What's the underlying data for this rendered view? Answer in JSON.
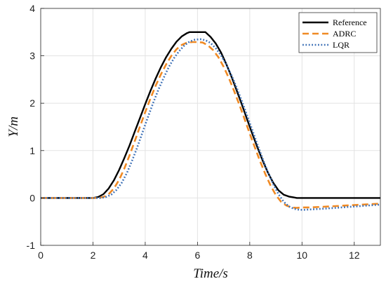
{
  "chart_data": {
    "type": "line",
    "xlabel": "Time/s",
    "ylabel": "Y/m",
    "xlim": [
      0,
      13
    ],
    "ylim": [
      -1,
      4
    ],
    "xticks": [
      "0",
      "2",
      "4",
      "6",
      "8",
      "10",
      "12"
    ],
    "yticks": [
      "-1",
      "0",
      "1",
      "2",
      "3",
      "4"
    ],
    "grid": true,
    "legend_position": "top-right",
    "series": [
      {
        "name": "Reference",
        "color": "#000000",
        "style": "solid",
        "x": [
          0,
          2.0,
          2.2,
          2.4,
          2.6,
          2.8,
          3.0,
          3.2,
          3.4,
          3.6,
          3.8,
          4.0,
          4.2,
          4.4,
          4.6,
          4.8,
          5.0,
          5.2,
          5.4,
          5.6,
          5.7,
          6.0,
          6.3,
          6.5,
          6.7,
          6.9,
          7.1,
          7.3,
          7.5,
          7.7,
          7.9,
          8.1,
          8.3,
          8.5,
          8.7,
          8.9,
          9.1,
          9.3,
          9.5,
          9.7,
          9.8,
          10.0,
          13.0
        ],
        "y": [
          0,
          0,
          0.02,
          0.08,
          0.2,
          0.37,
          0.59,
          0.84,
          1.11,
          1.4,
          1.69,
          1.98,
          2.26,
          2.52,
          2.76,
          2.97,
          3.15,
          3.3,
          3.41,
          3.48,
          3.5,
          3.5,
          3.5,
          3.4,
          3.26,
          3.07,
          2.83,
          2.56,
          2.27,
          1.97,
          1.66,
          1.35,
          1.06,
          0.78,
          0.53,
          0.32,
          0.16,
          0.07,
          0.03,
          0.01,
          0.0,
          0.0,
          0.0
        ]
      },
      {
        "name": "ADRC",
        "color": "#F08A24",
        "style": "dashed",
        "x": [
          0,
          2.2,
          2.4,
          2.6,
          2.8,
          3.0,
          3.2,
          3.4,
          3.6,
          3.8,
          4.0,
          4.2,
          4.4,
          4.6,
          4.8,
          5.0,
          5.2,
          5.4,
          5.6,
          5.8,
          6.0,
          6.2,
          6.4,
          6.6,
          6.8,
          7.0,
          7.2,
          7.4,
          7.6,
          7.8,
          8.0,
          8.2,
          8.4,
          8.6,
          8.8,
          9.0,
          9.2,
          9.4,
          9.6,
          9.8,
          10.0,
          10.3,
          11.0,
          12.0,
          13.0
        ],
        "y": [
          0,
          0,
          0.02,
          0.08,
          0.2,
          0.38,
          0.62,
          0.9,
          1.2,
          1.51,
          1.81,
          2.1,
          2.37,
          2.61,
          2.82,
          3.0,
          3.14,
          3.23,
          3.28,
          3.29,
          3.29,
          3.28,
          3.22,
          3.12,
          2.97,
          2.77,
          2.53,
          2.26,
          1.97,
          1.67,
          1.36,
          1.06,
          0.77,
          0.5,
          0.26,
          0.06,
          -0.08,
          -0.16,
          -0.2,
          -0.21,
          -0.2,
          -0.2,
          -0.18,
          -0.15,
          -0.12
        ]
      },
      {
        "name": "LQR",
        "color": "#3B6FB6",
        "style": "dotted",
        "x": [
          0,
          2.3,
          2.5,
          2.7,
          2.9,
          3.1,
          3.3,
          3.5,
          3.7,
          3.9,
          4.1,
          4.3,
          4.5,
          4.7,
          4.9,
          5.1,
          5.3,
          5.5,
          5.7,
          5.9,
          6.1,
          6.3,
          6.5,
          6.7,
          6.9,
          7.1,
          7.3,
          7.5,
          7.7,
          7.9,
          8.1,
          8.3,
          8.5,
          8.7,
          8.9,
          9.1,
          9.3,
          9.5,
          9.7,
          9.9,
          10.1,
          10.4,
          11.0,
          12.0,
          13.0
        ],
        "y": [
          0,
          0,
          0.02,
          0.07,
          0.17,
          0.32,
          0.53,
          0.79,
          1.08,
          1.39,
          1.7,
          2.0,
          2.28,
          2.53,
          2.76,
          2.95,
          3.1,
          3.22,
          3.3,
          3.34,
          3.35,
          3.33,
          3.27,
          3.16,
          3.01,
          2.82,
          2.59,
          2.33,
          2.04,
          1.74,
          1.43,
          1.12,
          0.82,
          0.54,
          0.29,
          0.08,
          -0.08,
          -0.18,
          -0.23,
          -0.25,
          -0.25,
          -0.24,
          -0.22,
          -0.18,
          -0.14
        ]
      }
    ]
  }
}
